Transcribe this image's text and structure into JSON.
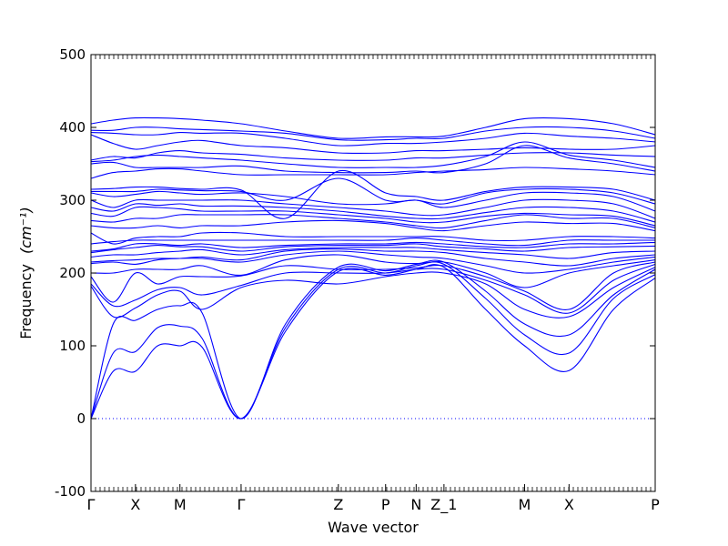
{
  "chart_data": {
    "type": "line",
    "xlabel": "Wave vector",
    "ylabel": "Frequency",
    "ylabel_unit": "(cm⁻¹)",
    "ylim": [
      -100,
      500
    ],
    "yticks": [
      -100,
      0,
      100,
      200,
      300,
      400,
      500
    ],
    "xlim": [
      0,
      10.15
    ],
    "grid": false,
    "zero_line": "dotted",
    "line_color": "#0000ff",
    "high_symmetry_points": [
      {
        "label": "Γ",
        "x": 0.0
      },
      {
        "label": "X",
        "x": 0.8
      },
      {
        "label": "M",
        "x": 1.6
      },
      {
        "label": "Γ",
        "x": 2.7
      },
      {
        "label": "Z",
        "x": 4.45
      },
      {
        "label": "P",
        "x": 5.3
      },
      {
        "label": "N",
        "x": 5.85
      },
      {
        "label": "Z_1",
        "x": 6.35
      },
      {
        "label": "M",
        "x": 7.8
      },
      {
        "label": "X",
        "x": 8.6
      },
      {
        "label": "P",
        "x": 10.15
      }
    ],
    "bands_x": [
      0.0,
      0.4,
      0.8,
      1.2,
      1.6,
      2.0,
      2.7,
      3.5,
      4.45,
      5.3,
      5.85,
      6.35,
      7.1,
      7.8,
      8.6,
      9.4,
      10.15
    ],
    "series": [
      {
        "values": [
          0,
          65,
          65,
          100,
          100,
          98,
          0,
          120,
          202,
          197,
          205,
          208,
          150,
          100,
          66,
          150,
          193
        ]
      },
      {
        "values": [
          0,
          90,
          92,
          125,
          127,
          110,
          0,
          125,
          205,
          200,
          210,
          212,
          165,
          115,
          90,
          165,
          198
        ]
      },
      {
        "values": [
          0,
          130,
          135,
          150,
          155,
          145,
          0,
          130,
          208,
          203,
          212,
          215,
          175,
          130,
          115,
          170,
          205
        ]
      },
      {
        "values": [
          182,
          140,
          152,
          170,
          175,
          150,
          180,
          190,
          185,
          195,
          200,
          200,
          185,
          150,
          140,
          180,
          208
        ]
      },
      {
        "values": [
          185,
          155,
          163,
          177,
          180,
          170,
          183,
          200,
          200,
          200,
          205,
          205,
          190,
          170,
          145,
          190,
          212
        ]
      },
      {
        "values": [
          195,
          160,
          200,
          185,
          195,
          195,
          196,
          210,
          205,
          205,
          207,
          210,
          195,
          175,
          150,
          200,
          215
        ]
      },
      {
        "values": [
          200,
          200,
          205,
          205,
          205,
          210,
          197,
          218,
          225,
          215,
          213,
          215,
          200,
          180,
          200,
          210,
          218
        ]
      },
      {
        "values": [
          213,
          215,
          212,
          218,
          220,
          220,
          215,
          225,
          230,
          225,
          222,
          220,
          210,
          200,
          205,
          215,
          222
        ]
      },
      {
        "values": [
          215,
          217,
          218,
          220,
          220,
          222,
          218,
          230,
          233,
          230,
          230,
          228,
          220,
          215,
          210,
          220,
          225
        ]
      },
      {
        "values": [
          222,
          225,
          225,
          228,
          230,
          232,
          225,
          232,
          235,
          235,
          235,
          232,
          228,
          225,
          220,
          228,
          230
        ]
      },
      {
        "values": [
          228,
          232,
          235,
          238,
          236,
          236,
          230,
          236,
          238,
          238,
          240,
          236,
          233,
          230,
          235,
          236,
          237
        ]
      },
      {
        "values": [
          230,
          233,
          240,
          240,
          238,
          240,
          235,
          238,
          240,
          240,
          242,
          240,
          236,
          235,
          240,
          240,
          242
        ]
      },
      {
        "values": [
          240,
          243,
          245,
          245,
          245,
          245,
          245,
          245,
          245,
          245,
          248,
          245,
          240,
          238,
          245,
          245,
          245
        ]
      },
      {
        "values": [
          255,
          240,
          248,
          250,
          250,
          255,
          255,
          250,
          250,
          250,
          250,
          250,
          245,
          245,
          250,
          250,
          248
        ]
      },
      {
        "values": [
          265,
          262,
          262,
          265,
          262,
          265,
          265,
          270,
          272,
          268,
          262,
          258,
          265,
          270,
          268,
          268,
          258
        ]
      },
      {
        "values": [
          272,
          270,
          275,
          275,
          280,
          280,
          280,
          280,
          275,
          270,
          265,
          262,
          272,
          280,
          275,
          275,
          262
        ]
      },
      {
        "values": [
          282,
          278,
          290,
          290,
          288,
          285,
          285,
          285,
          280,
          275,
          270,
          270,
          278,
          282,
          280,
          278,
          265
        ]
      },
      {
        "values": [
          290,
          285,
          295,
          293,
          295,
          292,
          292,
          290,
          285,
          278,
          275,
          275,
          283,
          290,
          290,
          285,
          270
        ]
      },
      {
        "values": [
          300,
          290,
          300,
          300,
          300,
          300,
          300,
          295,
          290,
          285,
          280,
          280,
          290,
          300,
          300,
          295,
          275
        ]
      },
      {
        "values": [
          310,
          305,
          308,
          312,
          310,
          308,
          310,
          305,
          295,
          295,
          300,
          290,
          300,
          310,
          310,
          305,
          285
        ]
      },
      {
        "values": [
          312,
          312,
          312,
          315,
          314,
          313,
          312,
          300,
          330,
          300,
          300,
          295,
          310,
          315,
          315,
          310,
          295
        ]
      },
      {
        "values": [
          315,
          316,
          318,
          318,
          316,
          315,
          314,
          275,
          340,
          310,
          305,
          300,
          312,
          318,
          318,
          315,
          300
        ]
      },
      {
        "values": [
          330,
          338,
          340,
          343,
          343,
          340,
          335,
          335,
          335,
          335,
          338,
          340,
          342,
          345,
          343,
          340,
          335
        ]
      },
      {
        "values": [
          350,
          352,
          345,
          345,
          345,
          345,
          347,
          340,
          338,
          338,
          340,
          338,
          350,
          375,
          358,
          350,
          340
        ]
      },
      {
        "values": [
          353,
          355,
          360,
          362,
          360,
          358,
          355,
          350,
          345,
          345,
          345,
          348,
          360,
          380,
          362,
          355,
          345
        ]
      },
      {
        "values": [
          355,
          360,
          358,
          365,
          368,
          365,
          363,
          358,
          355,
          355,
          358,
          358,
          362,
          365,
          365,
          362,
          360
        ]
      },
      {
        "values": [
          390,
          378,
          370,
          375,
          380,
          382,
          375,
          372,
          365,
          365,
          368,
          368,
          370,
          372,
          370,
          370,
          375
        ]
      },
      {
        "values": [
          393,
          392,
          390,
          390,
          393,
          392,
          392,
          385,
          375,
          378,
          378,
          380,
          385,
          392,
          388,
          385,
          380
        ]
      },
      {
        "values": [
          396,
          396,
          400,
          400,
          398,
          397,
          395,
          392,
          383,
          383,
          385,
          385,
          395,
          400,
          400,
          395,
          385
        ]
      },
      {
        "values": [
          405,
          410,
          413,
          413,
          412,
          410,
          405,
          395,
          385,
          387,
          387,
          388,
          400,
          412,
          412,
          405,
          390
        ]
      }
    ]
  }
}
